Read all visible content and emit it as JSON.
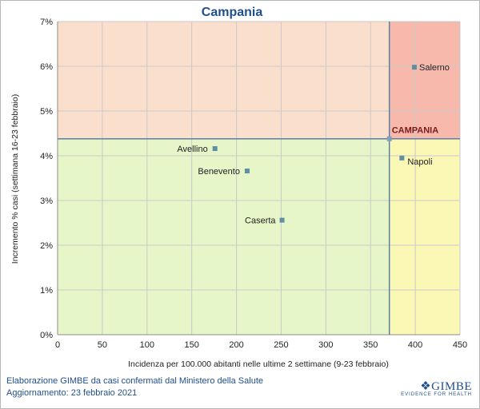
{
  "chart_data": {
    "type": "scatter",
    "title": "Campania",
    "xlabel": "Incidenza per 100.000 abitanti nelle ultime 2 settimane (9-23 febbraio)",
    "ylabel": "Incremento % casi (settimana 16-23 febbraio)",
    "xlim": [
      0,
      450
    ],
    "ylim": [
      0,
      7
    ],
    "x_ticks": [
      0,
      50,
      100,
      150,
      200,
      250,
      300,
      350,
      400,
      450
    ],
    "y_ticks": [
      0,
      1,
      2,
      3,
      4,
      5,
      6,
      7
    ],
    "y_tick_labels": [
      "0%",
      "1%",
      "2%",
      "3%",
      "4%",
      "5%",
      "6%",
      "7%"
    ],
    "grid": true,
    "reference": {
      "name": "CAMPANIA",
      "x": 371,
      "y": 4.38
    },
    "quadrant_colors": {
      "top_left": "#fadfcd",
      "top_right": "#f8b9ad",
      "bottom_left": "#e6f6c8",
      "bottom_right": "#fbf7b5"
    },
    "marker_color": "#5f8fa3",
    "points": [
      {
        "name": "Salerno",
        "x": 399,
        "y": 5.98
      },
      {
        "name": "Avellino",
        "x": 176,
        "y": 4.16
      },
      {
        "name": "Napoli",
        "x": 385,
        "y": 3.95
      },
      {
        "name": "Benevento",
        "x": 212,
        "y": 3.66
      },
      {
        "name": "Caserta",
        "x": 251,
        "y": 2.56
      }
    ]
  },
  "footer": {
    "line1": "Elaborazione GIMBE da casi confermati dal Ministero della Salute",
    "line2": "Aggiornamento: 23 febbraio 2021"
  },
  "logo": {
    "brand": "GIMBE",
    "tagline": "EVIDENCE FOR HEALTH"
  }
}
